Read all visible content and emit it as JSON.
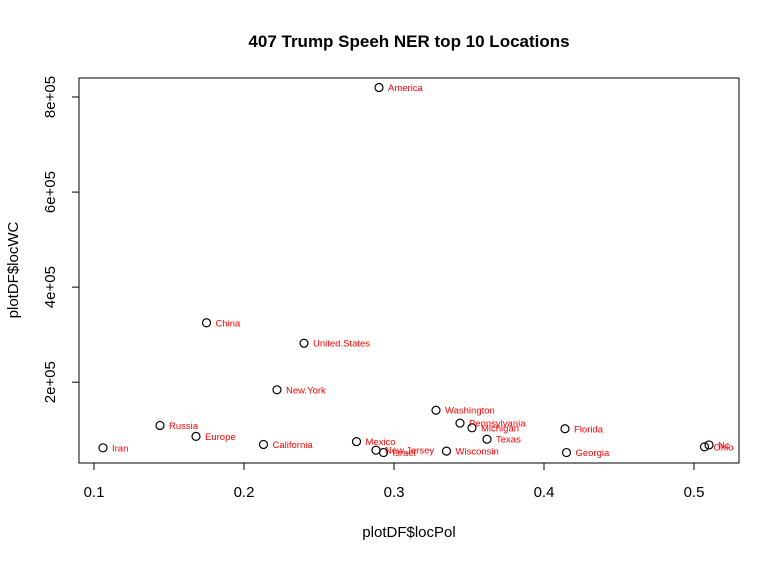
{
  "chart_data": {
    "type": "scatter",
    "title": "407 Trump Speeh NER top 10 Locations",
    "xlabel": "plotDF$locPol",
    "ylabel": "plotDF$locWC",
    "xlim": [
      0.09,
      0.53
    ],
    "ylim": [
      30000,
      840000
    ],
    "x_ticks": [
      0.1,
      0.2,
      0.3,
      0.4,
      0.5
    ],
    "x_tick_labels": [
      "0.1",
      "0.2",
      "0.3",
      "0.4",
      "0.5"
    ],
    "y_ticks": [
      200000,
      400000,
      600000,
      800000
    ],
    "y_tick_labels": [
      "2e+05",
      "4e+05",
      "6e+05",
      "8e+05"
    ],
    "grid": false,
    "point_color": "#000000",
    "label_color": "#ff0000",
    "points": [
      {
        "label": "America",
        "x": 0.29,
        "y": 820000
      },
      {
        "label": "China",
        "x": 0.175,
        "y": 325000
      },
      {
        "label": "United.States",
        "x": 0.24,
        "y": 282000
      },
      {
        "label": "New.York",
        "x": 0.222,
        "y": 184000
      },
      {
        "label": "Washington",
        "x": 0.328,
        "y": 141000
      },
      {
        "label": "Russia",
        "x": 0.144,
        "y": 109000
      },
      {
        "label": "Pennsylvania",
        "x": 0.344,
        "y": 114000
      },
      {
        "label": "Michigan",
        "x": 0.352,
        "y": 104000
      },
      {
        "label": "Florida",
        "x": 0.414,
        "y": 102000
      },
      {
        "label": "Europe",
        "x": 0.168,
        "y": 86000
      },
      {
        "label": "Texas",
        "x": 0.362,
        "y": 80000
      },
      {
        "label": "Mexico",
        "x": 0.275,
        "y": 75000
      },
      {
        "label": "California",
        "x": 0.213,
        "y": 69000
      },
      {
        "label": "Iran",
        "x": 0.106,
        "y": 62000
      },
      {
        "label": "New.Jersey",
        "x": 0.288,
        "y": 57000
      },
      {
        "label": "Israel",
        "x": 0.293,
        "y": 52000
      },
      {
        "label": "Wisconsin",
        "x": 0.335,
        "y": 55000
      },
      {
        "label": "Georgia",
        "x": 0.415,
        "y": 52000
      },
      {
        "label": "Ohio",
        "x": 0.507,
        "y": 64000
      },
      {
        "label": "Nc",
        "x": 0.51,
        "y": 68000
      }
    ]
  }
}
